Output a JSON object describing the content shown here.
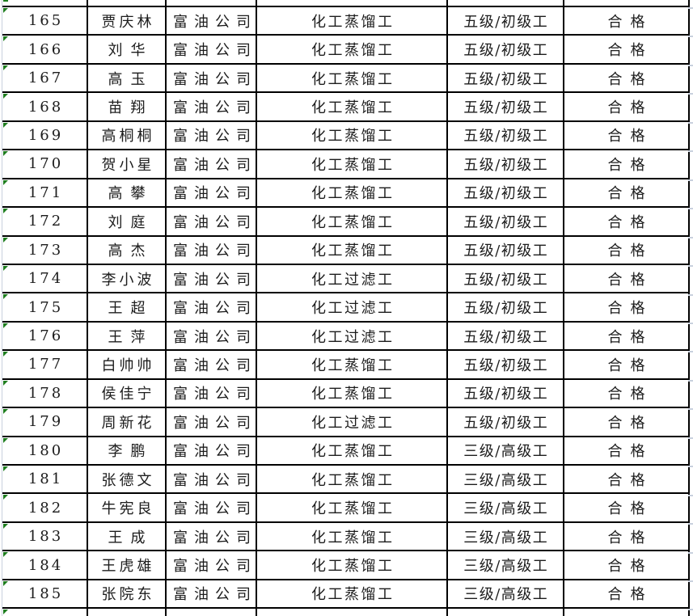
{
  "colors": {
    "background": "#ffffff",
    "border": "#000000",
    "text": "#1c1c1c",
    "gridline": "#c9d1de",
    "error_indicator": "#1e7d1e"
  },
  "table": {
    "column_keys": [
      "index",
      "name",
      "company",
      "job_title",
      "level",
      "result"
    ],
    "rows": [
      {
        "index": "165",
        "name": "贾庆林",
        "company": "富油公司",
        "job_title": "化工蒸馏工",
        "level": "五级/初级工",
        "result": "合格"
      },
      {
        "index": "166",
        "name": "刘华",
        "company": "富油公司",
        "job_title": "化工蒸馏工",
        "level": "五级/初级工",
        "result": "合格"
      },
      {
        "index": "167",
        "name": "高玉",
        "company": "富油公司",
        "job_title": "化工蒸馏工",
        "level": "五级/初级工",
        "result": "合格"
      },
      {
        "index": "168",
        "name": "苗翔",
        "company": "富油公司",
        "job_title": "化工蒸馏工",
        "level": "五级/初级工",
        "result": "合格"
      },
      {
        "index": "169",
        "name": "高桐桐",
        "company": "富油公司",
        "job_title": "化工蒸馏工",
        "level": "五级/初级工",
        "result": "合格"
      },
      {
        "index": "170",
        "name": "贺小星",
        "company": "富油公司",
        "job_title": "化工蒸馏工",
        "level": "五级/初级工",
        "result": "合格"
      },
      {
        "index": "171",
        "name": "高攀",
        "company": "富油公司",
        "job_title": "化工蒸馏工",
        "level": "五级/初级工",
        "result": "合格"
      },
      {
        "index": "172",
        "name": "刘庭",
        "company": "富油公司",
        "job_title": "化工蒸馏工",
        "level": "五级/初级工",
        "result": "合格"
      },
      {
        "index": "173",
        "name": "高杰",
        "company": "富油公司",
        "job_title": "化工蒸馏工",
        "level": "五级/初级工",
        "result": "合格"
      },
      {
        "index": "174",
        "name": "李小波",
        "company": "富油公司",
        "job_title": "化工过滤工",
        "level": "五级/初级工",
        "result": "合格"
      },
      {
        "index": "175",
        "name": "王超",
        "company": "富油公司",
        "job_title": "化工过滤工",
        "level": "五级/初级工",
        "result": "合格"
      },
      {
        "index": "176",
        "name": "王萍",
        "company": "富油公司",
        "job_title": "化工过滤工",
        "level": "五级/初级工",
        "result": "合格"
      },
      {
        "index": "177",
        "name": "白帅帅",
        "company": "富油公司",
        "job_title": "化工蒸馏工",
        "level": "五级/初级工",
        "result": "合格"
      },
      {
        "index": "178",
        "name": "侯佳宁",
        "company": "富油公司",
        "job_title": "化工蒸馏工",
        "level": "五级/初级工",
        "result": "合格"
      },
      {
        "index": "179",
        "name": "周新花",
        "company": "富油公司",
        "job_title": "化工过滤工",
        "level": "五级/初级工",
        "result": "合格"
      },
      {
        "index": "180",
        "name": "李鹏",
        "company": "富油公司",
        "job_title": "化工蒸馏工",
        "level": "三级/高级工",
        "result": "合格"
      },
      {
        "index": "181",
        "name": "张德文",
        "company": "富油公司",
        "job_title": "化工蒸馏工",
        "level": "三级/高级工",
        "result": "合格"
      },
      {
        "index": "182",
        "name": "牛宪良",
        "company": "富油公司",
        "job_title": "化工蒸馏工",
        "level": "三级/高级工",
        "result": "合格"
      },
      {
        "index": "183",
        "name": "王成",
        "company": "富油公司",
        "job_title": "化工蒸馏工",
        "level": "三级/高级工",
        "result": "合格"
      },
      {
        "index": "184",
        "name": "王虎雄",
        "company": "富油公司",
        "job_title": "化工蒸馏工",
        "level": "三级/高级工",
        "result": "合格"
      },
      {
        "index": "185",
        "name": "张院东",
        "company": "富油公司",
        "job_title": "化工蒸馏工",
        "level": "三级/高级工",
        "result": "合格"
      }
    ]
  }
}
